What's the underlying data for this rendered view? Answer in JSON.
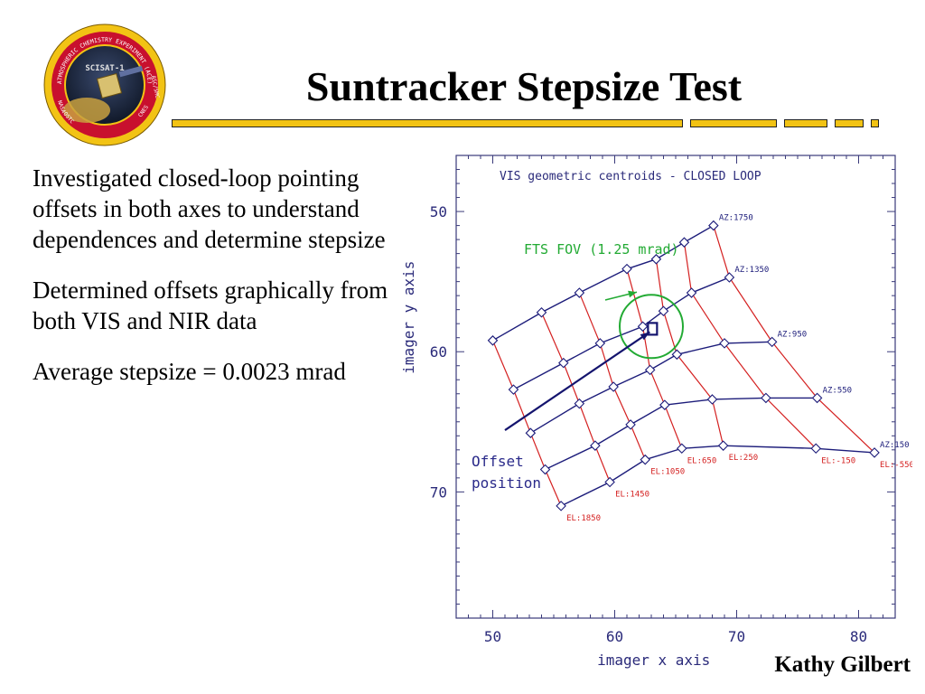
{
  "slide": {
    "title": "Suntracker Stepsize Test",
    "bullets": [
      "Investigated closed-loop pointing offsets in both axes to understand dependences and determine stepsize",
      "Determined offsets graphically from both VIS and NIR data",
      "Average stepsize  = 0.0023 mrad"
    ],
    "author": "Kathy Gilbert",
    "rule_color": "#f2c314"
  },
  "logo": {
    "ring_text": "ATMOSPHERIC CHEMISTRY EXPERIMENT (ACE)",
    "center_text": "SCISAT-1",
    "left_text": "NASA",
    "right_text": "ASC/SMC",
    "bottom_left_text": "OSTC",
    "bottom_right_text": "CNES",
    "ring_color": "#c8102e"
  },
  "chart_data": {
    "type": "scatter",
    "title": "VIS geometric centroids - CLOSED LOOP",
    "xlabel": "imager x axis",
    "ylabel": "imager y axis",
    "xlim": [
      47,
      83
    ],
    "ylim": [
      79,
      46
    ],
    "y_inverted": true,
    "xticks": [
      50,
      60,
      70,
      80
    ],
    "yticks": [
      50,
      60,
      70
    ],
    "az_color": "#1c1c7a",
    "el_color": "#d42020",
    "grid": [
      [
        [
          50.0,
          59.2
        ],
        [
          54.0,
          57.2
        ],
        [
          57.1,
          55.8
        ],
        [
          61.0,
          54.1
        ],
        [
          63.4,
          53.4
        ],
        [
          65.7,
          52.2
        ],
        [
          68.1,
          51.0
        ]
      ],
      [
        [
          51.7,
          62.7
        ],
        [
          55.8,
          60.8
        ],
        [
          58.8,
          59.4
        ],
        [
          62.3,
          58.2
        ],
        [
          64.0,
          57.1
        ],
        [
          66.3,
          55.8
        ],
        [
          69.4,
          54.7
        ]
      ],
      [
        [
          53.1,
          65.8
        ],
        [
          57.1,
          63.7
        ],
        [
          59.9,
          62.5
        ],
        [
          62.9,
          61.3
        ],
        [
          65.1,
          60.2
        ],
        [
          69.0,
          59.4
        ],
        [
          72.9,
          59.3
        ]
      ],
      [
        [
          54.3,
          68.4
        ],
        [
          58.4,
          66.7
        ],
        [
          61.3,
          65.2
        ],
        [
          64.1,
          63.8
        ],
        [
          68.0,
          63.4
        ],
        [
          72.4,
          63.3
        ],
        [
          76.6,
          63.3
        ]
      ],
      [
        [
          55.6,
          71.0
        ],
        [
          59.6,
          69.3
        ],
        [
          62.5,
          67.7
        ],
        [
          65.5,
          66.9
        ],
        [
          68.9,
          66.7
        ],
        [
          76.5,
          66.9
        ],
        [
          81.3,
          67.2
        ]
      ]
    ],
    "az_labels": [
      "AZ:1750",
      "AZ:1350",
      "AZ:950",
      "AZ:550",
      "AZ:150"
    ],
    "el_labels": [
      "EL:1850",
      "EL:1450",
      "EL:1050",
      "EL:650",
      "EL:250",
      "EL:-150",
      "EL:-550"
    ],
    "fov_label": "FTS FOV (1.25 mrad)",
    "fov_center": [
      63.0,
      58.2
    ],
    "fov_color": "#22aa33",
    "offset_label": [
      "Offset",
      "position"
    ],
    "offset_point": [
      63.1,
      58.4
    ],
    "offset_arrow_from": [
      51.0,
      65.6
    ]
  }
}
